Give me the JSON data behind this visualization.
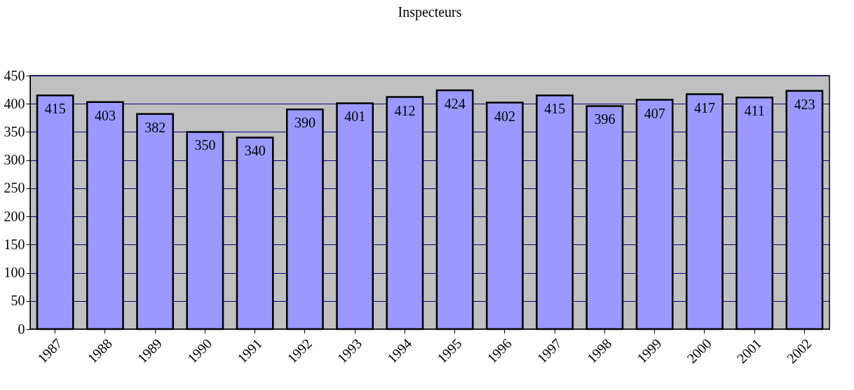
{
  "chart_data": {
    "type": "bar",
    "title": "Inspecteurs",
    "categories": [
      "1987",
      "1988",
      "1989",
      "1990",
      "1991",
      "1992",
      "1993",
      "1994",
      "1995",
      "1996",
      "1997",
      "1998",
      "1999",
      "2000",
      "2001",
      "2002"
    ],
    "values": [
      415,
      403,
      382,
      350,
      340,
      390,
      401,
      412,
      424,
      402,
      415,
      396,
      407,
      417,
      411,
      423
    ],
    "color": "#9999ff",
    "ylim": [
      0,
      450
    ],
    "yticks": [
      0,
      50,
      100,
      150,
      200,
      250,
      300,
      350,
      400,
      450
    ],
    "grid": "y",
    "data_labels": true
  }
}
